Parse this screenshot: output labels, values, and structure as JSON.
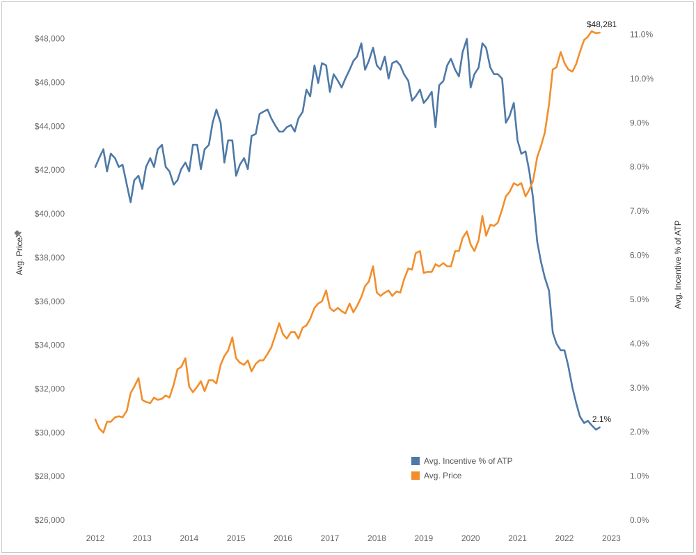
{
  "chart_data": {
    "type": "line",
    "axes": {
      "left": {
        "label": "Avg. Price",
        "pin_icon": "pin-icon",
        "ticks": [
          "$26,000",
          "$28,000",
          "$30,000",
          "$32,000",
          "$34,000",
          "$36,000",
          "$38,000",
          "$40,000",
          "$42,000",
          "$44,000",
          "$46,000",
          "$48,000"
        ],
        "ylim": [
          26000,
          48500
        ]
      },
      "right": {
        "label": "Avg. Incentive % of ATP",
        "ticks": [
          "0.0%",
          "1.0%",
          "2.0%",
          "3.0%",
          "4.0%",
          "5.0%",
          "6.0%",
          "7.0%",
          "8.0%",
          "9.0%",
          "10.0%",
          "11.0%"
        ],
        "ylim": [
          0,
          11.15
        ]
      },
      "x": {
        "ticks": [
          "2012",
          "2013",
          "2014",
          "2015",
          "2016",
          "2017",
          "2018",
          "2019",
          "2020",
          "2021",
          "2022",
          "2023"
        ]
      }
    },
    "grid": false,
    "legend_position": "bottom-center",
    "series": [
      {
        "name": "Avg. Incentive % of ATP",
        "axis": "right",
        "color": "#4e79a7",
        "end_label": "2.1%",
        "points": [
          [
            2012.0,
            8.0
          ],
          [
            2012.08,
            8.2
          ],
          [
            2012.17,
            8.4
          ],
          [
            2012.25,
            7.9
          ],
          [
            2012.33,
            8.3
          ],
          [
            2012.42,
            8.2
          ],
          [
            2012.5,
            8.0
          ],
          [
            2012.58,
            8.05
          ],
          [
            2012.67,
            7.6
          ],
          [
            2012.75,
            7.2
          ],
          [
            2012.83,
            7.7
          ],
          [
            2012.92,
            7.8
          ],
          [
            2013.0,
            7.5
          ],
          [
            2013.08,
            8.0
          ],
          [
            2013.17,
            8.2
          ],
          [
            2013.25,
            8.0
          ],
          [
            2013.33,
            8.4
          ],
          [
            2013.42,
            8.5
          ],
          [
            2013.5,
            8.0
          ],
          [
            2013.58,
            7.9
          ],
          [
            2013.67,
            7.6
          ],
          [
            2013.75,
            7.7
          ],
          [
            2013.83,
            7.95
          ],
          [
            2013.92,
            8.1
          ],
          [
            2014.0,
            7.9
          ],
          [
            2014.08,
            8.5
          ],
          [
            2014.17,
            8.5
          ],
          [
            2014.25,
            7.95
          ],
          [
            2014.33,
            8.4
          ],
          [
            2014.42,
            8.5
          ],
          [
            2014.5,
            9.0
          ],
          [
            2014.58,
            9.3
          ],
          [
            2014.67,
            9.0
          ],
          [
            2014.75,
            8.1
          ],
          [
            2014.83,
            8.6
          ],
          [
            2014.92,
            8.6
          ],
          [
            2015.0,
            7.8
          ],
          [
            2015.08,
            8.05
          ],
          [
            2015.17,
            8.2
          ],
          [
            2015.25,
            7.95
          ],
          [
            2015.33,
            8.7
          ],
          [
            2015.42,
            8.75
          ],
          [
            2015.5,
            9.2
          ],
          [
            2015.58,
            9.25
          ],
          [
            2015.67,
            9.3
          ],
          [
            2015.75,
            9.1
          ],
          [
            2015.83,
            8.95
          ],
          [
            2015.92,
            8.8
          ],
          [
            2016.0,
            8.8
          ],
          [
            2016.08,
            8.9
          ],
          [
            2016.17,
            8.95
          ],
          [
            2016.25,
            8.8
          ],
          [
            2016.33,
            9.1
          ],
          [
            2016.42,
            9.25
          ],
          [
            2016.5,
            9.75
          ],
          [
            2016.58,
            9.6
          ],
          [
            2016.67,
            10.3
          ],
          [
            2016.75,
            9.9
          ],
          [
            2016.83,
            10.35
          ],
          [
            2016.92,
            10.3
          ],
          [
            2017.0,
            9.7
          ],
          [
            2017.08,
            10.1
          ],
          [
            2017.17,
            9.95
          ],
          [
            2017.25,
            9.8
          ],
          [
            2017.33,
            10.0
          ],
          [
            2017.42,
            10.2
          ],
          [
            2017.5,
            10.4
          ],
          [
            2017.58,
            10.5
          ],
          [
            2017.67,
            10.8
          ],
          [
            2017.75,
            10.2
          ],
          [
            2017.83,
            10.4
          ],
          [
            2017.92,
            10.7
          ],
          [
            2018.0,
            10.3
          ],
          [
            2018.08,
            10.2
          ],
          [
            2018.17,
            10.5
          ],
          [
            2018.25,
            10.0
          ],
          [
            2018.33,
            10.35
          ],
          [
            2018.42,
            10.4
          ],
          [
            2018.5,
            10.3
          ],
          [
            2018.58,
            10.1
          ],
          [
            2018.67,
            9.95
          ],
          [
            2018.75,
            9.5
          ],
          [
            2018.83,
            9.6
          ],
          [
            2018.92,
            9.75
          ],
          [
            2019.0,
            9.45
          ],
          [
            2019.08,
            9.55
          ],
          [
            2019.17,
            9.7
          ],
          [
            2019.25,
            8.9
          ],
          [
            2019.33,
            9.85
          ],
          [
            2019.42,
            9.95
          ],
          [
            2019.5,
            10.3
          ],
          [
            2019.58,
            10.45
          ],
          [
            2019.67,
            10.2
          ],
          [
            2019.75,
            10.05
          ],
          [
            2019.83,
            10.6
          ],
          [
            2019.92,
            10.9
          ],
          [
            2020.0,
            9.8
          ],
          [
            2020.08,
            10.1
          ],
          [
            2020.17,
            10.25
          ],
          [
            2020.25,
            10.8
          ],
          [
            2020.33,
            10.7
          ],
          [
            2020.42,
            10.25
          ],
          [
            2020.5,
            10.1
          ],
          [
            2020.58,
            10.1
          ],
          [
            2020.67,
            10.0
          ],
          [
            2020.75,
            9.0
          ],
          [
            2020.83,
            9.15
          ],
          [
            2020.92,
            9.45
          ],
          [
            2021.0,
            8.6
          ],
          [
            2021.08,
            8.3
          ],
          [
            2021.17,
            8.35
          ],
          [
            2021.25,
            7.9
          ],
          [
            2021.33,
            7.3
          ],
          [
            2021.42,
            6.3
          ],
          [
            2021.5,
            5.85
          ],
          [
            2021.58,
            5.5
          ],
          [
            2021.67,
            5.2
          ],
          [
            2021.75,
            4.25
          ],
          [
            2021.83,
            4.0
          ],
          [
            2021.92,
            3.85
          ],
          [
            2022.0,
            3.85
          ],
          [
            2022.08,
            3.5
          ],
          [
            2022.17,
            3.0
          ],
          [
            2022.25,
            2.65
          ],
          [
            2022.33,
            2.35
          ],
          [
            2022.42,
            2.2
          ],
          [
            2022.5,
            2.25
          ],
          [
            2022.58,
            2.15
          ],
          [
            2022.67,
            2.05
          ],
          [
            2022.75,
            2.1
          ]
        ]
      },
      {
        "name": "Avg. Price",
        "axis": "left",
        "color": "#f28e2b",
        "end_label": "$48,281",
        "points": [
          [
            2012.0,
            30600
          ],
          [
            2012.08,
            30200
          ],
          [
            2012.17,
            30000
          ],
          [
            2012.25,
            30500
          ],
          [
            2012.33,
            30500
          ],
          [
            2012.42,
            30700
          ],
          [
            2012.5,
            30750
          ],
          [
            2012.58,
            30700
          ],
          [
            2012.67,
            31000
          ],
          [
            2012.75,
            31800
          ],
          [
            2012.83,
            32100
          ],
          [
            2012.92,
            32500
          ],
          [
            2013.0,
            31500
          ],
          [
            2013.08,
            31400
          ],
          [
            2013.17,
            31350
          ],
          [
            2013.25,
            31600
          ],
          [
            2013.33,
            31500
          ],
          [
            2013.42,
            31550
          ],
          [
            2013.5,
            31700
          ],
          [
            2013.58,
            31600
          ],
          [
            2013.67,
            32200
          ],
          [
            2013.75,
            32900
          ],
          [
            2013.83,
            33000
          ],
          [
            2013.92,
            33400
          ],
          [
            2014.0,
            32100
          ],
          [
            2014.08,
            31850
          ],
          [
            2014.17,
            32100
          ],
          [
            2014.25,
            32350
          ],
          [
            2014.33,
            31900
          ],
          [
            2014.42,
            32400
          ],
          [
            2014.5,
            32400
          ],
          [
            2014.58,
            32250
          ],
          [
            2014.67,
            33100
          ],
          [
            2014.75,
            33500
          ],
          [
            2014.83,
            33750
          ],
          [
            2014.92,
            34350
          ],
          [
            2015.0,
            33400
          ],
          [
            2015.08,
            33200
          ],
          [
            2015.17,
            33100
          ],
          [
            2015.25,
            33300
          ],
          [
            2015.33,
            32800
          ],
          [
            2015.42,
            33150
          ],
          [
            2015.5,
            33300
          ],
          [
            2015.58,
            33300
          ],
          [
            2015.67,
            33600
          ],
          [
            2015.75,
            33900
          ],
          [
            2015.83,
            34400
          ],
          [
            2015.92,
            35000
          ],
          [
            2016.0,
            34500
          ],
          [
            2016.08,
            34300
          ],
          [
            2016.17,
            34600
          ],
          [
            2016.25,
            34600
          ],
          [
            2016.33,
            34300
          ],
          [
            2016.42,
            34800
          ],
          [
            2016.5,
            34900
          ],
          [
            2016.58,
            35200
          ],
          [
            2016.67,
            35700
          ],
          [
            2016.75,
            35900
          ],
          [
            2016.83,
            36000
          ],
          [
            2016.92,
            36500
          ],
          [
            2017.0,
            35700
          ],
          [
            2017.08,
            35550
          ],
          [
            2017.17,
            35700
          ],
          [
            2017.25,
            35550
          ],
          [
            2017.33,
            35450
          ],
          [
            2017.42,
            35900
          ],
          [
            2017.5,
            35500
          ],
          [
            2017.58,
            35800
          ],
          [
            2017.67,
            36200
          ],
          [
            2017.75,
            36700
          ],
          [
            2017.83,
            36900
          ],
          [
            2017.92,
            37600
          ],
          [
            2018.0,
            36400
          ],
          [
            2018.08,
            36250
          ],
          [
            2018.17,
            36400
          ],
          [
            2018.25,
            36500
          ],
          [
            2018.33,
            36250
          ],
          [
            2018.42,
            36450
          ],
          [
            2018.5,
            36400
          ],
          [
            2018.58,
            37000
          ],
          [
            2018.67,
            37500
          ],
          [
            2018.75,
            37450
          ],
          [
            2018.83,
            38200
          ],
          [
            2018.92,
            38300
          ],
          [
            2019.0,
            37300
          ],
          [
            2019.08,
            37350
          ],
          [
            2019.17,
            37350
          ],
          [
            2019.25,
            37700
          ],
          [
            2019.33,
            37600
          ],
          [
            2019.42,
            37750
          ],
          [
            2019.5,
            37600
          ],
          [
            2019.58,
            37600
          ],
          [
            2019.67,
            38300
          ],
          [
            2019.75,
            38300
          ],
          [
            2019.83,
            38900
          ],
          [
            2019.92,
            39200
          ],
          [
            2020.0,
            38600
          ],
          [
            2020.08,
            38300
          ],
          [
            2020.17,
            38800
          ],
          [
            2020.25,
            39900
          ],
          [
            2020.33,
            39000
          ],
          [
            2020.42,
            39500
          ],
          [
            2020.5,
            39450
          ],
          [
            2020.58,
            39600
          ],
          [
            2020.67,
            40200
          ],
          [
            2020.75,
            40800
          ],
          [
            2020.83,
            41000
          ],
          [
            2020.92,
            41400
          ],
          [
            2021.0,
            41300
          ],
          [
            2021.08,
            41400
          ],
          [
            2021.17,
            40800
          ],
          [
            2021.25,
            41100
          ],
          [
            2021.33,
            41500
          ],
          [
            2021.42,
            42600
          ],
          [
            2021.5,
            43100
          ],
          [
            2021.58,
            43700
          ],
          [
            2021.67,
            45000
          ],
          [
            2021.75,
            46600
          ],
          [
            2021.83,
            46700
          ],
          [
            2021.92,
            47400
          ],
          [
            2022.0,
            46900
          ],
          [
            2022.08,
            46600
          ],
          [
            2022.17,
            46500
          ],
          [
            2022.25,
            46850
          ],
          [
            2022.33,
            47400
          ],
          [
            2022.42,
            47950
          ],
          [
            2022.5,
            48100
          ],
          [
            2022.58,
            48350
          ],
          [
            2022.67,
            48250
          ],
          [
            2022.75,
            48281
          ]
        ]
      }
    ]
  }
}
